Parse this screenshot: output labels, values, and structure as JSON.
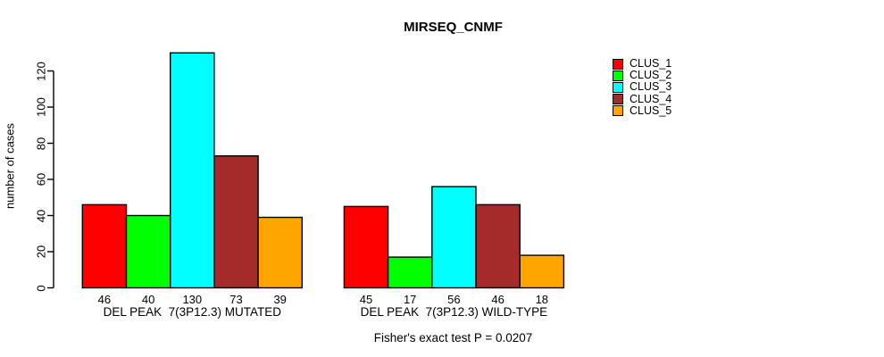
{
  "chart_data": {
    "type": "bar",
    "title": "MIRSEQ_CNMF",
    "ylabel": "number of cases",
    "xlabel": "",
    "categories": [
      "DEL PEAK  7(3P12.3) MUTATED",
      "DEL PEAK  7(3P12.3) WILD-TYPE"
    ],
    "series": [
      {
        "name": "CLUS_1",
        "color": "#ff0000",
        "values": [
          46,
          45
        ]
      },
      {
        "name": "CLUS_2",
        "color": "#00ff00",
        "values": [
          40,
          17
        ]
      },
      {
        "name": "CLUS_3",
        "color": "#00ffff",
        "values": [
          130,
          56
        ]
      },
      {
        "name": "CLUS_4",
        "color": "#a52a2a",
        "values": [
          73,
          46
        ]
      },
      {
        "name": "CLUS_5",
        "color": "#ffa500",
        "values": [
          39,
          18
        ]
      }
    ],
    "y_ticks": [
      0,
      20,
      40,
      60,
      80,
      100,
      120
    ],
    "ylim": [
      0,
      130
    ],
    "grid": false,
    "legend_position": "top-right",
    "bar_value_labels": true,
    "annotation": "Fisher's exact test P = 0.0207",
    "axis_color": "#000000",
    "background": "#ffffff"
  }
}
